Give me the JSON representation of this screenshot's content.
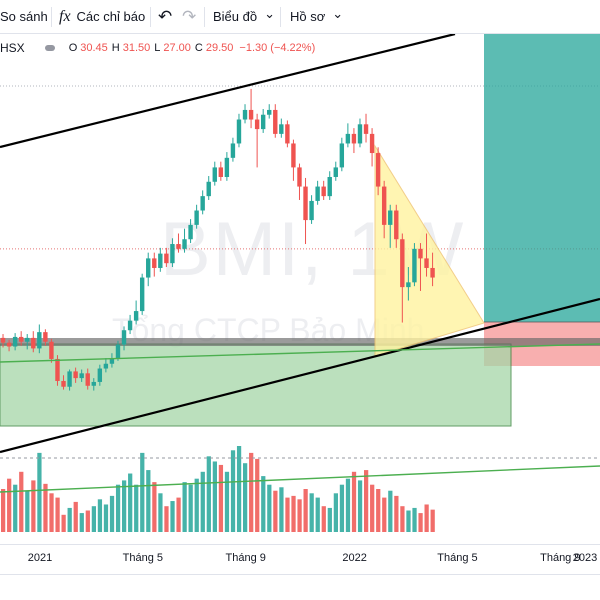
{
  "toolbar": {
    "compare_label": "So sánh",
    "indicators_label": "Các chỉ báo",
    "fx_glyph": "fx",
    "undo_glyph": "↶",
    "redo_glyph": "↷",
    "chart_type_label": "Biểu đồ",
    "profile_label": "Hồ sơ",
    "chevron": "⌄"
  },
  "legend": {
    "exchange": "HSX",
    "open_label": "O",
    "open_value": "30.45",
    "high_label": "H",
    "high_value": "31.50",
    "low_label": "L",
    "low_value": "27.00",
    "close_label": "C",
    "close_value": "29.50",
    "change": "−1.30 (−4.22%)"
  },
  "watermark": {
    "symbol_line": "BMI, 1W",
    "name_line": "Tổng CTCP Bảo Minh"
  },
  "time_axis": {
    "labels": [
      {
        "text": "2021",
        "pos": 0
      },
      {
        "text": "Tháng 5",
        "pos": 17
      },
      {
        "text": "Tháng 9",
        "pos": 34
      },
      {
        "text": "2022",
        "pos": 52
      },
      {
        "text": "Tháng 5",
        "pos": 69
      },
      {
        "text": "Tháng 9",
        "pos": 86
      },
      {
        "text": "2023",
        "pos": 104
      }
    ]
  },
  "colors": {
    "up": "#26a69a",
    "down": "#ef5350",
    "target_zone": "#26a69a",
    "stop_zone": "#f7a1a1",
    "support_box": "#a5d6a7",
    "triangle": "#fff3a0",
    "trendline": "#000000",
    "ma_line": "#4caf50",
    "dotted_level": "#e57373"
  },
  "chart_data": {
    "type": "candlestick",
    "interval": "1W",
    "candles": [
      [
        29.2,
        28.7,
        29.6,
        28.2
      ],
      [
        28.7,
        28.3,
        29.0,
        27.8
      ],
      [
        28.3,
        29.3,
        29.7,
        27.9
      ],
      [
        29.3,
        28.8,
        29.9,
        28.4
      ],
      [
        28.8,
        29.2,
        29.6,
        28.0
      ],
      [
        29.2,
        28.1,
        29.9,
        27.7
      ],
      [
        28.1,
        29.8,
        30.6,
        27.6
      ],
      [
        29.8,
        28.8,
        30.1,
        28.4
      ],
      [
        28.8,
        27.0,
        29.1,
        26.6
      ],
      [
        27.0,
        24.7,
        27.4,
        24.2
      ],
      [
        24.7,
        24.1,
        25.3,
        23.8
      ],
      [
        24.1,
        25.7,
        25.9,
        23.7
      ],
      [
        25.7,
        25.0,
        26.1,
        24.5
      ],
      [
        25.0,
        25.5,
        25.9,
        24.6
      ],
      [
        25.5,
        24.2,
        26.0,
        23.8
      ],
      [
        24.2,
        24.6,
        25.0,
        23.7
      ],
      [
        24.6,
        26.0,
        26.4,
        24.2
      ],
      [
        26.0,
        26.5,
        27.1,
        25.6
      ],
      [
        26.5,
        27.0,
        27.6,
        26.1
      ],
      [
        27.0,
        28.5,
        28.9,
        26.8
      ],
      [
        28.5,
        30.0,
        30.4,
        27.9
      ],
      [
        30.0,
        31.0,
        31.6,
        29.6
      ],
      [
        31.0,
        32.0,
        33.1,
        30.6
      ],
      [
        32.0,
        35.5,
        35.9,
        31.6
      ],
      [
        35.5,
        37.5,
        38.1,
        34.6
      ],
      [
        37.5,
        36.5,
        38.1,
        35.6
      ],
      [
        36.5,
        38.0,
        38.6,
        36.1
      ],
      [
        38.0,
        37.0,
        38.6,
        36.6
      ],
      [
        37.0,
        39.0,
        39.6,
        36.6
      ],
      [
        39.0,
        38.5,
        40.1,
        38.1
      ],
      [
        38.5,
        39.5,
        40.6,
        38.1
      ],
      [
        39.5,
        41.0,
        41.6,
        39.1
      ],
      [
        41.0,
        42.5,
        43.1,
        40.6
      ],
      [
        42.5,
        44.0,
        44.6,
        42.1
      ],
      [
        44.0,
        45.5,
        46.1,
        43.6
      ],
      [
        45.5,
        47.0,
        47.6,
        45.1
      ],
      [
        47.0,
        46.0,
        47.6,
        45.6
      ],
      [
        46.0,
        48.0,
        48.6,
        45.6
      ],
      [
        48.0,
        49.5,
        50.1,
        47.6
      ],
      [
        49.5,
        52.0,
        52.6,
        49.1
      ],
      [
        52.0,
        53.0,
        53.6,
        51.6
      ],
      [
        53.0,
        52.0,
        55.2,
        51.1
      ],
      [
        52.0,
        51.0,
        52.6,
        47.0
      ],
      [
        51.0,
        52.5,
        53.1,
        50.6
      ],
      [
        52.5,
        53.0,
        53.6,
        52.1
      ],
      [
        53.0,
        50.5,
        53.6,
        50.1
      ],
      [
        50.5,
        51.5,
        52.1,
        50.1
      ],
      [
        51.5,
        49.5,
        51.9,
        49.1
      ],
      [
        49.5,
        47.0,
        49.9,
        45.6
      ],
      [
        47.0,
        45.0,
        47.4,
        43.6
      ],
      [
        45.0,
        41.5,
        45.9,
        39.0
      ],
      [
        41.5,
        43.5,
        44.1,
        41.1
      ],
      [
        43.5,
        45.0,
        45.6,
        43.1
      ],
      [
        45.0,
        44.0,
        45.6,
        43.6
      ],
      [
        44.0,
        46.0,
        46.6,
        43.6
      ],
      [
        46.0,
        47.0,
        47.6,
        45.6
      ],
      [
        47.0,
        49.5,
        50.1,
        46.6
      ],
      [
        49.5,
        50.5,
        51.6,
        49.1
      ],
      [
        50.5,
        49.5,
        51.1,
        48.5
      ],
      [
        49.5,
        51.5,
        52.1,
        49.1
      ],
      [
        51.5,
        50.5,
        52.6,
        49.6
      ],
      [
        50.5,
        48.5,
        51.1,
        47.1
      ],
      [
        48.5,
        45.0,
        49.1,
        44.1
      ],
      [
        45.0,
        41.0,
        45.6,
        39.6
      ],
      [
        41.0,
        42.5,
        43.1,
        38.6
      ],
      [
        42.5,
        39.5,
        43.1,
        38.6
      ],
      [
        39.5,
        34.5,
        40.1,
        30.8
      ],
      [
        34.5,
        35.0,
        36.6,
        33.1
      ],
      [
        35.0,
        38.5,
        39.1,
        34.6
      ],
      [
        38.5,
        37.5,
        39.1,
        34.1
      ],
      [
        37.5,
        36.5,
        40.1,
        35.6
      ],
      [
        36.5,
        35.5,
        38.1,
        34.6
      ]
    ],
    "volume_relative": [
      0.5,
      0.62,
      0.55,
      0.7,
      0.48,
      0.6,
      0.92,
      0.56,
      0.45,
      0.4,
      0.2,
      0.28,
      0.35,
      0.22,
      0.25,
      0.3,
      0.38,
      0.32,
      0.42,
      0.55,
      0.6,
      0.68,
      0.55,
      0.92,
      0.72,
      0.58,
      0.45,
      0.3,
      0.36,
      0.4,
      0.58,
      0.55,
      0.62,
      0.7,
      0.88,
      0.82,
      0.78,
      0.7,
      0.95,
      1.0,
      0.8,
      0.92,
      0.85,
      0.65,
      0.55,
      0.48,
      0.52,
      0.4,
      0.42,
      0.38,
      0.5,
      0.45,
      0.4,
      0.3,
      0.28,
      0.45,
      0.55,
      0.62,
      0.7,
      0.6,
      0.72,
      0.55,
      0.5,
      0.4,
      0.48,
      0.42,
      0.3,
      0.25,
      0.28,
      0.22,
      0.32,
      0.26
    ],
    "price_levels": {
      "dotted_high": 55.5,
      "dotted_mid": 38.5
    }
  }
}
